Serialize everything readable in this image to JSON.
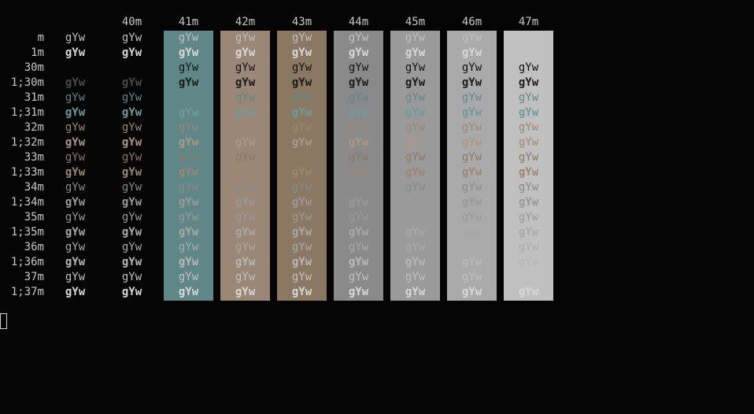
{
  "headers": [
    "",
    "40m",
    "41m",
    "42m",
    "43m",
    "44m",
    "45m",
    "46m",
    "47m"
  ],
  "sample": "gYw",
  "bg_colors": [
    null,
    null,
    "#5f8787",
    "#9a8776",
    "#8b7862",
    "#8a8a8a",
    "#9a9a9a",
    "#aaaaaa",
    "#c0c0c0"
  ],
  "rows": [
    {
      "label": "m",
      "bold": false,
      "fg": [
        "#c0c0c0",
        "#c0c0c0",
        "#c0c0c0",
        "#c0c0c0",
        "#c0c0c0",
        "#c0c0c0",
        "#c0c0c0",
        "#c0c0c0",
        null
      ]
    },
    {
      "label": "1m",
      "bold": true,
      "fg": [
        "#d8d8d8",
        "#d8d8d8",
        "#d8d8d8",
        "#d8d8d8",
        "#d8d8d8",
        "#d8d8d8",
        "#d8d8d8",
        "#d8d8d8",
        null
      ]
    },
    {
      "label": "30m",
      "bold": false,
      "fg": [
        "#050505",
        "#050505",
        "#111111",
        "#111111",
        "#111111",
        "#111111",
        "#111111",
        "#111111",
        "#111111"
      ]
    },
    {
      "label": "1;30m",
      "bold": true,
      "fg": [
        "#4a4a4a",
        "#4a4a4a",
        "#1a1a1a",
        "#1a1a1a",
        "#1a1a1a",
        "#1a1a1a",
        "#1a1a1a",
        "#1a1a1a",
        "#1a1a1a"
      ]
    },
    {
      "label": "31m",
      "bold": false,
      "fg": [
        "#5f8787",
        "#5f8787",
        "#5f8787",
        "#5f8787",
        "#5f8787",
        "#5f8787",
        "#5f8787",
        "#5f8787",
        "#5f8787"
      ]
    },
    {
      "label": "1;31m",
      "bold": true,
      "fg": [
        "#6f9a9a",
        "#6f9a9a",
        "#6f9a9a",
        "#6f9a9a",
        "#6f9a9a",
        "#6f9a9a",
        "#6f9a9a",
        "#6f9a9a",
        "#6f9a9a"
      ]
    },
    {
      "label": "32m",
      "bold": false,
      "fg": [
        "#9a8776",
        "#9a8776",
        "#9a8776",
        "#9a8776",
        "#9a8776",
        "#9a8776",
        "#9a8776",
        "#9a8776",
        "#9a8776"
      ]
    },
    {
      "label": "1;32m",
      "bold": true,
      "fg": [
        "#ab9886",
        "#ab9886",
        "#ab9886",
        "#ab9886",
        "#ab9886",
        "#ab9886",
        "#ab9886",
        "#ab9886",
        "#ab9886"
      ]
    },
    {
      "label": "33m",
      "bold": false,
      "fg": [
        "#8b7862",
        "#8b7862",
        "#8b7862",
        "#8b7862",
        "#8b7862",
        "#8b7862",
        "#8b7862",
        "#8b7862",
        "#8b7862"
      ]
    },
    {
      "label": "1;33m",
      "bold": true,
      "fg": [
        "#9c8870",
        "#9c8870",
        "#9c8870",
        "#9c8870",
        "#9c8870",
        "#9c8870",
        "#9c8870",
        "#9c8870",
        "#9c8870"
      ]
    },
    {
      "label": "34m",
      "bold": false,
      "fg": [
        "#8a8a8a",
        "#8a8a8a",
        "#8a8a8a",
        "#8a8a8a",
        "#8a8a8a",
        "#8a8a8a",
        "#8a8a8a",
        "#8a8a8a",
        "#8a8a8a"
      ]
    },
    {
      "label": "1;34m",
      "bold": true,
      "fg": [
        "#999999",
        "#999999",
        "#999999",
        "#999999",
        "#999999",
        "#999999",
        "#999999",
        "#999999",
        "#999999"
      ]
    },
    {
      "label": "35m",
      "bold": false,
      "fg": [
        "#9a9a9a",
        "#9a9a9a",
        "#9a9a9a",
        "#9a9a9a",
        "#9a9a9a",
        "#9a9a9a",
        "#9a9a9a",
        "#9a9a9a",
        "#9a9a9a"
      ]
    },
    {
      "label": "1;35m",
      "bold": true,
      "fg": [
        "#a8a8a8",
        "#a8a8a8",
        "#a8a8a8",
        "#a8a8a8",
        "#a8a8a8",
        "#a8a8a8",
        "#a8a8a8",
        "#a8a8a8",
        "#a8a8a8"
      ]
    },
    {
      "label": "36m",
      "bold": false,
      "fg": [
        "#aaaaaa",
        "#aaaaaa",
        "#aaaaaa",
        "#aaaaaa",
        "#aaaaaa",
        "#aaaaaa",
        "#aaaaaa",
        "#aaaaaa",
        "#aaaaaa"
      ]
    },
    {
      "label": "1;36m",
      "bold": true,
      "fg": [
        "#b8b8b8",
        "#b8b8b8",
        "#b8b8b8",
        "#b8b8b8",
        "#b8b8b8",
        "#b8b8b8",
        "#b8b8b8",
        "#b8b8b8",
        "#b8b8b8"
      ]
    },
    {
      "label": "37m",
      "bold": false,
      "fg": [
        "#c0c0c0",
        "#c0c0c0",
        "#c0c0c0",
        "#c0c0c0",
        "#c0c0c0",
        "#c0c0c0",
        "#c0c0c0",
        "#c0c0c0",
        "#c0c0c0"
      ]
    },
    {
      "label": "1;37m",
      "bold": true,
      "fg": [
        "#d8d8d8",
        "#d8d8d8",
        "#d8d8d8",
        "#d8d8d8",
        "#d8d8d8",
        "#d8d8d8",
        "#d8d8d8",
        "#d8d8d8",
        "#d8d8d8"
      ]
    }
  ]
}
